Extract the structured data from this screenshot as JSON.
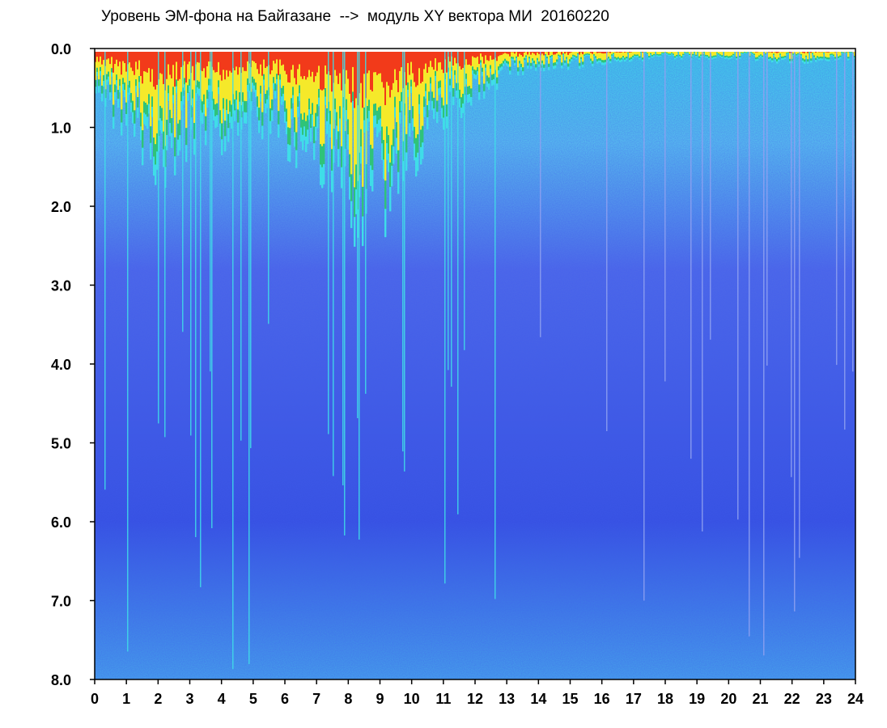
{
  "chart_data": {
    "type": "heatmap",
    "title": "Уровень ЭМ-фона на Байгазане  -->  модуль XY вектора МИ  20160220",
    "xlabel": "",
    "ylabel": "",
    "xlim": [
      0,
      24
    ],
    "ylim": [
      0,
      8
    ],
    "y_inverted": true,
    "x_ticks": [
      "0",
      "1",
      "2",
      "3",
      "4",
      "5",
      "6",
      "7",
      "8",
      "9",
      "10",
      "11",
      "12",
      "13",
      "14",
      "15",
      "16",
      "17",
      "18",
      "19",
      "20",
      "21",
      "22",
      "23",
      "24"
    ],
    "y_ticks": [
      "0.0",
      "1.0",
      "2.0",
      "3.0",
      "4.0",
      "5.0",
      "6.0",
      "7.0",
      "8.0"
    ],
    "colorscale": [
      "#0a1fd6",
      "#4f6be8",
      "#8ea0f0",
      "#3fdde8",
      "#2ab84a",
      "#f5e92a",
      "#f23a1a"
    ],
    "grid": false,
    "legend": "none",
    "hourly_intensity_depth": [
      0.6,
      0.8,
      1.3,
      1.1,
      1.0,
      0.8,
      1.0,
      1.2,
      1.7,
      1.9,
      1.2,
      0.8,
      0.5,
      0.3,
      0.2,
      0.2,
      0.15,
      0.12,
      0.1,
      0.1,
      0.1,
      0.12,
      0.15,
      0.12,
      0.1
    ]
  }
}
